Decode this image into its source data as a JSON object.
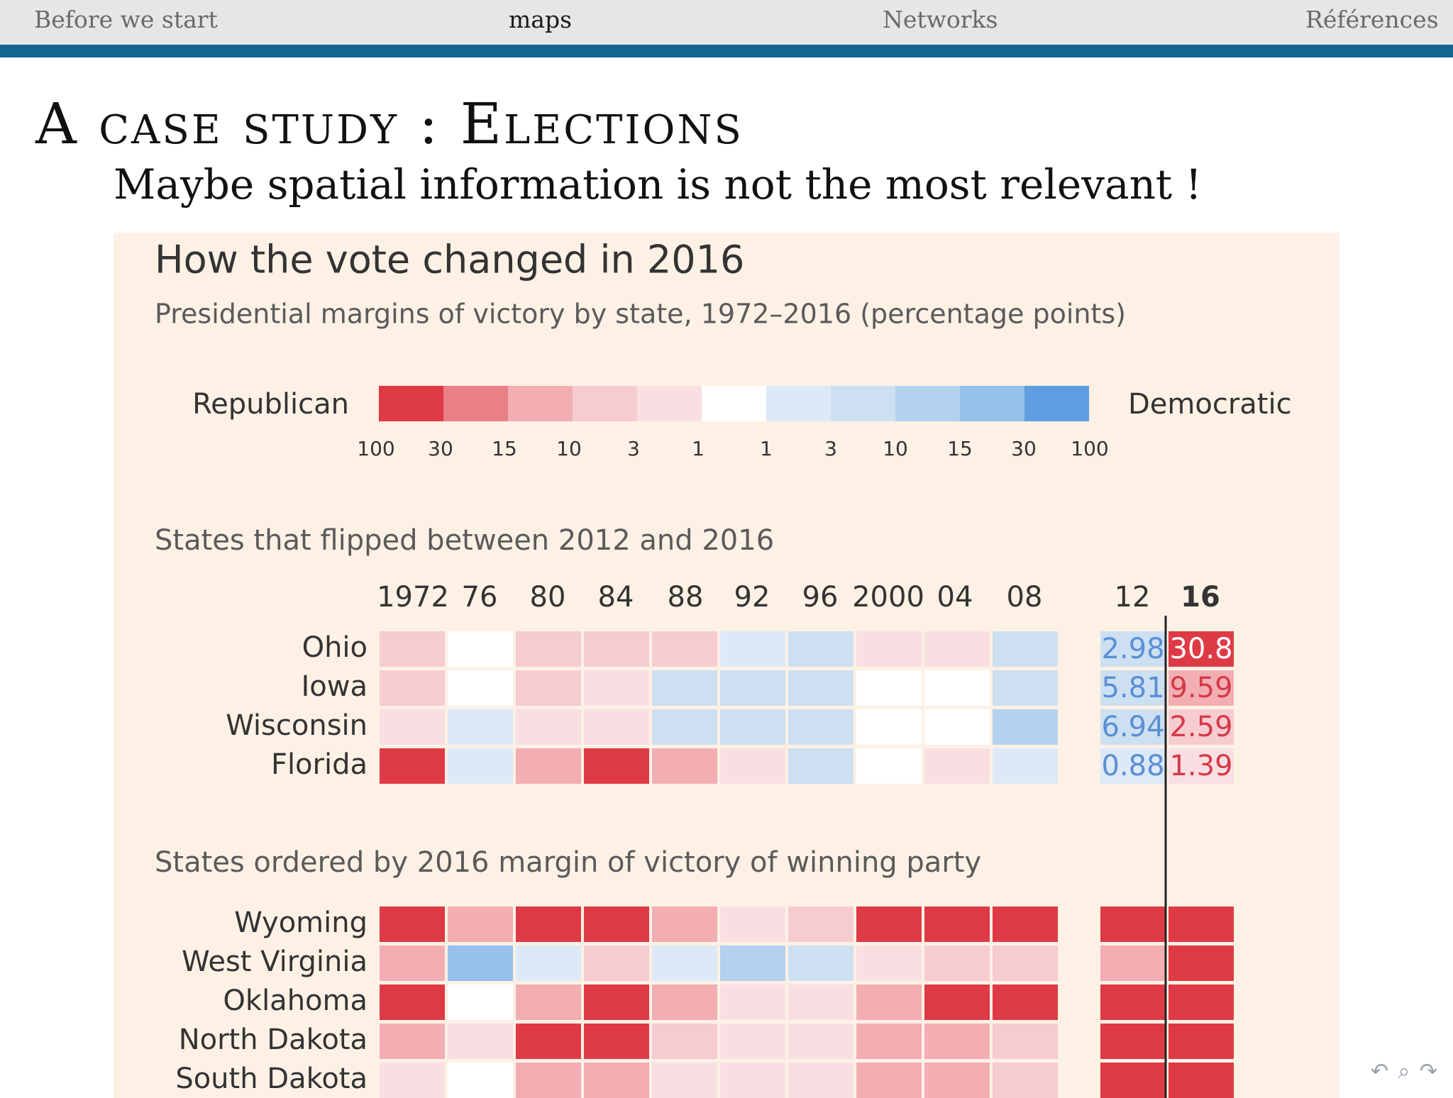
{
  "navbar": {
    "items": [
      {
        "label": "Before we start",
        "active": false
      },
      {
        "label": "maps",
        "active": true
      },
      {
        "label": "Networks",
        "active": false
      },
      {
        "label": "Références",
        "active": false
      }
    ]
  },
  "slide": {
    "title": "A case study : Elections",
    "subtitle": "Maybe spatial information is not the most relevant !"
  },
  "colors": {
    "nav_rule": "#14668f",
    "figure_bg": "#fdf1e5",
    "empty_cell": "#ffffff",
    "scale": [
      "#de3a45",
      "#ea7f86",
      "#f2aeb3",
      "#f6ccd1",
      "#f9dfe2",
      "#ffffff",
      "#dde9f6",
      "#cde0f2",
      "#b4d1ee",
      "#97c0ea",
      "#5f9ee0"
    ],
    "text_dark": "#333333",
    "text_grey": "#5a5a5a",
    "value_blue": "#5a8fd4",
    "value_red": "#d43a48"
  },
  "chart_data": {
    "type": "heatmap",
    "title": "How the vote changed in 2016",
    "subtitle": "Presidential margins of victory by state, 1972–2016 (percentage points)",
    "legend": {
      "left_label": "Republican",
      "right_label": "Democratic",
      "ticks": [
        "100",
        "30",
        "15",
        "10",
        "3",
        "1",
        "1",
        "3",
        "10",
        "15",
        "30",
        "100"
      ]
    },
    "columns": [
      "1972",
      "76",
      "80",
      "84",
      "88",
      "92",
      "96",
      "2000",
      "04",
      "08",
      "12",
      "16"
    ],
    "sections": [
      {
        "title": "States that flipped between 2012 and 2016",
        "rows": [
          {
            "state": "Ohio",
            "levels": [
              -2,
              0,
              -2,
              -2,
              -2,
              1,
              2,
              -1,
              -1,
              2,
              2,
              -5
            ],
            "labels": [
              "2.98",
              "30.8"
            ]
          },
          {
            "state": "Iowa",
            "levels": [
              -2,
              0,
              -2,
              -1,
              2,
              2,
              2,
              0,
              0,
              2,
              2,
              -3
            ],
            "labels": [
              "5.81",
              "9.59"
            ]
          },
          {
            "state": "Wisconsin",
            "levels": [
              -1,
              1,
              -1,
              -1,
              2,
              2,
              2,
              0,
              0,
              3,
              2,
              -2
            ],
            "labels": [
              "6.94",
              "2.59"
            ]
          },
          {
            "state": "Florida",
            "levels": [
              -5,
              1,
              -3,
              -5,
              -3,
              -1,
              2,
              0,
              -1,
              1,
              1,
              -1
            ],
            "labels": [
              "0.88",
              "1.39"
            ]
          }
        ]
      },
      {
        "title": "States ordered by 2016 margin of victory of winning party",
        "rows": [
          {
            "state": "Wyoming",
            "levels": [
              -5,
              -3,
              -5,
              -5,
              -3,
              -1,
              -2,
              -5,
              -5,
              -5,
              -5,
              -5
            ]
          },
          {
            "state": "West Virginia",
            "levels": [
              -3,
              4,
              1,
              -2,
              1,
              3,
              2,
              -1,
              -2,
              -2,
              -3,
              -5
            ]
          },
          {
            "state": "Oklahoma",
            "levels": [
              -5,
              0,
              -3,
              -5,
              -3,
              -1,
              -1,
              -3,
              -5,
              -5,
              -5,
              -5
            ]
          },
          {
            "state": "North Dakota",
            "levels": [
              -3,
              -1,
              -5,
              -5,
              -2,
              -1,
              -1,
              -3,
              -3,
              -2,
              -5,
              -5
            ]
          },
          {
            "state": "South Dakota",
            "levels": [
              -1,
              0,
              -3,
              -3,
              -1,
              -1,
              -1,
              -3,
              -3,
              -2,
              -5,
              -5
            ]
          }
        ]
      }
    ]
  },
  "nav_symbols": {
    "back_icon": "↶",
    "search_icon": "⌕",
    "forward_icon": "↷"
  }
}
